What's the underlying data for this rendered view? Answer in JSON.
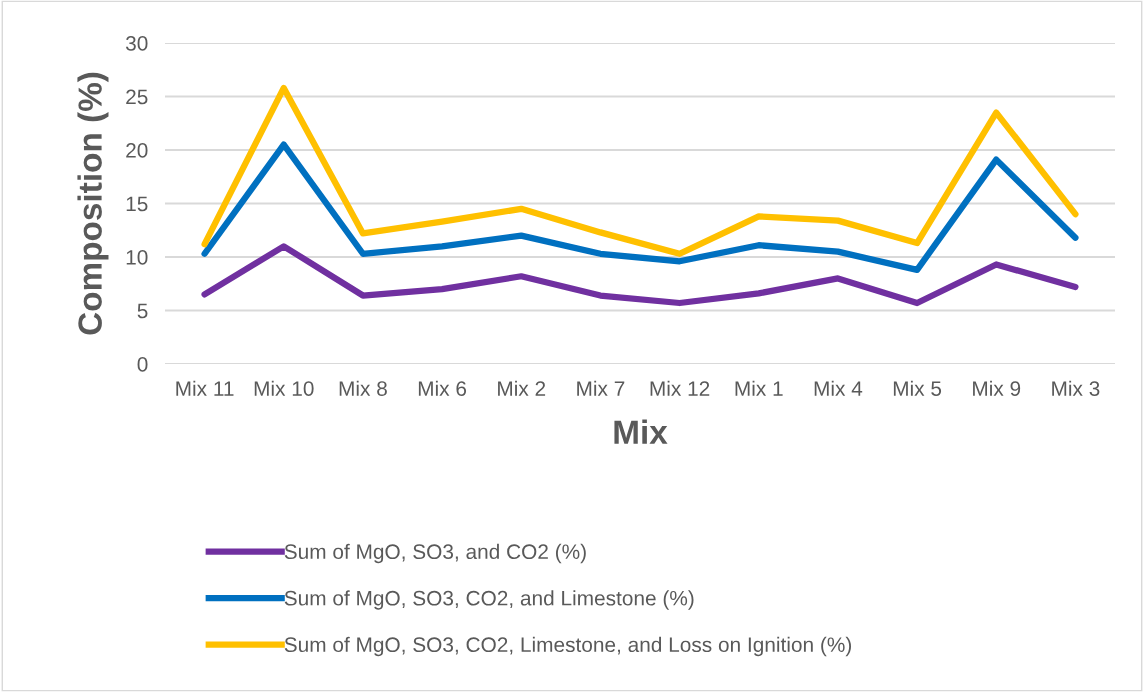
{
  "chart_data": {
    "type": "line",
    "xlabel": "Mix",
    "ylabel": "Composition (%)",
    "categories": [
      "Mix 11",
      "Mix 10",
      "Mix 8",
      "Mix 6",
      "Mix 2",
      "Mix 7",
      "Mix 12",
      "Mix 1",
      "Mix 4",
      "Mix 5",
      "Mix 9",
      "Mix 3"
    ],
    "series": [
      {
        "name": "Sum of MgO, SO3, and CO2 (%)",
        "color": "#7030a0",
        "values": [
          6.5,
          11.0,
          6.4,
          7.0,
          8.2,
          6.4,
          5.7,
          6.6,
          8.0,
          5.7,
          9.3,
          7.2
        ]
      },
      {
        "name": "Sum of MgO, SO3, CO2, and Limestone (%)",
        "color": "#0070c0",
        "values": [
          10.3,
          20.5,
          10.3,
          11.0,
          12.0,
          10.3,
          9.6,
          11.1,
          10.5,
          8.8,
          19.1,
          11.8
        ]
      },
      {
        "name": "Sum of MgO, SO3, CO2, Limestone, and Loss on Ignition (%)",
        "color": "#ffc000",
        "values": [
          11.2,
          25.8,
          12.2,
          13.3,
          14.5,
          12.3,
          10.3,
          13.8,
          13.4,
          11.3,
          23.5,
          14.0
        ]
      }
    ],
    "ylim": [
      0,
      30
    ],
    "yticks": [
      0,
      5,
      10,
      15,
      20,
      25,
      30
    ],
    "grid": "y",
    "legend": "bottom",
    "marker": "none",
    "line_style": "solid"
  }
}
